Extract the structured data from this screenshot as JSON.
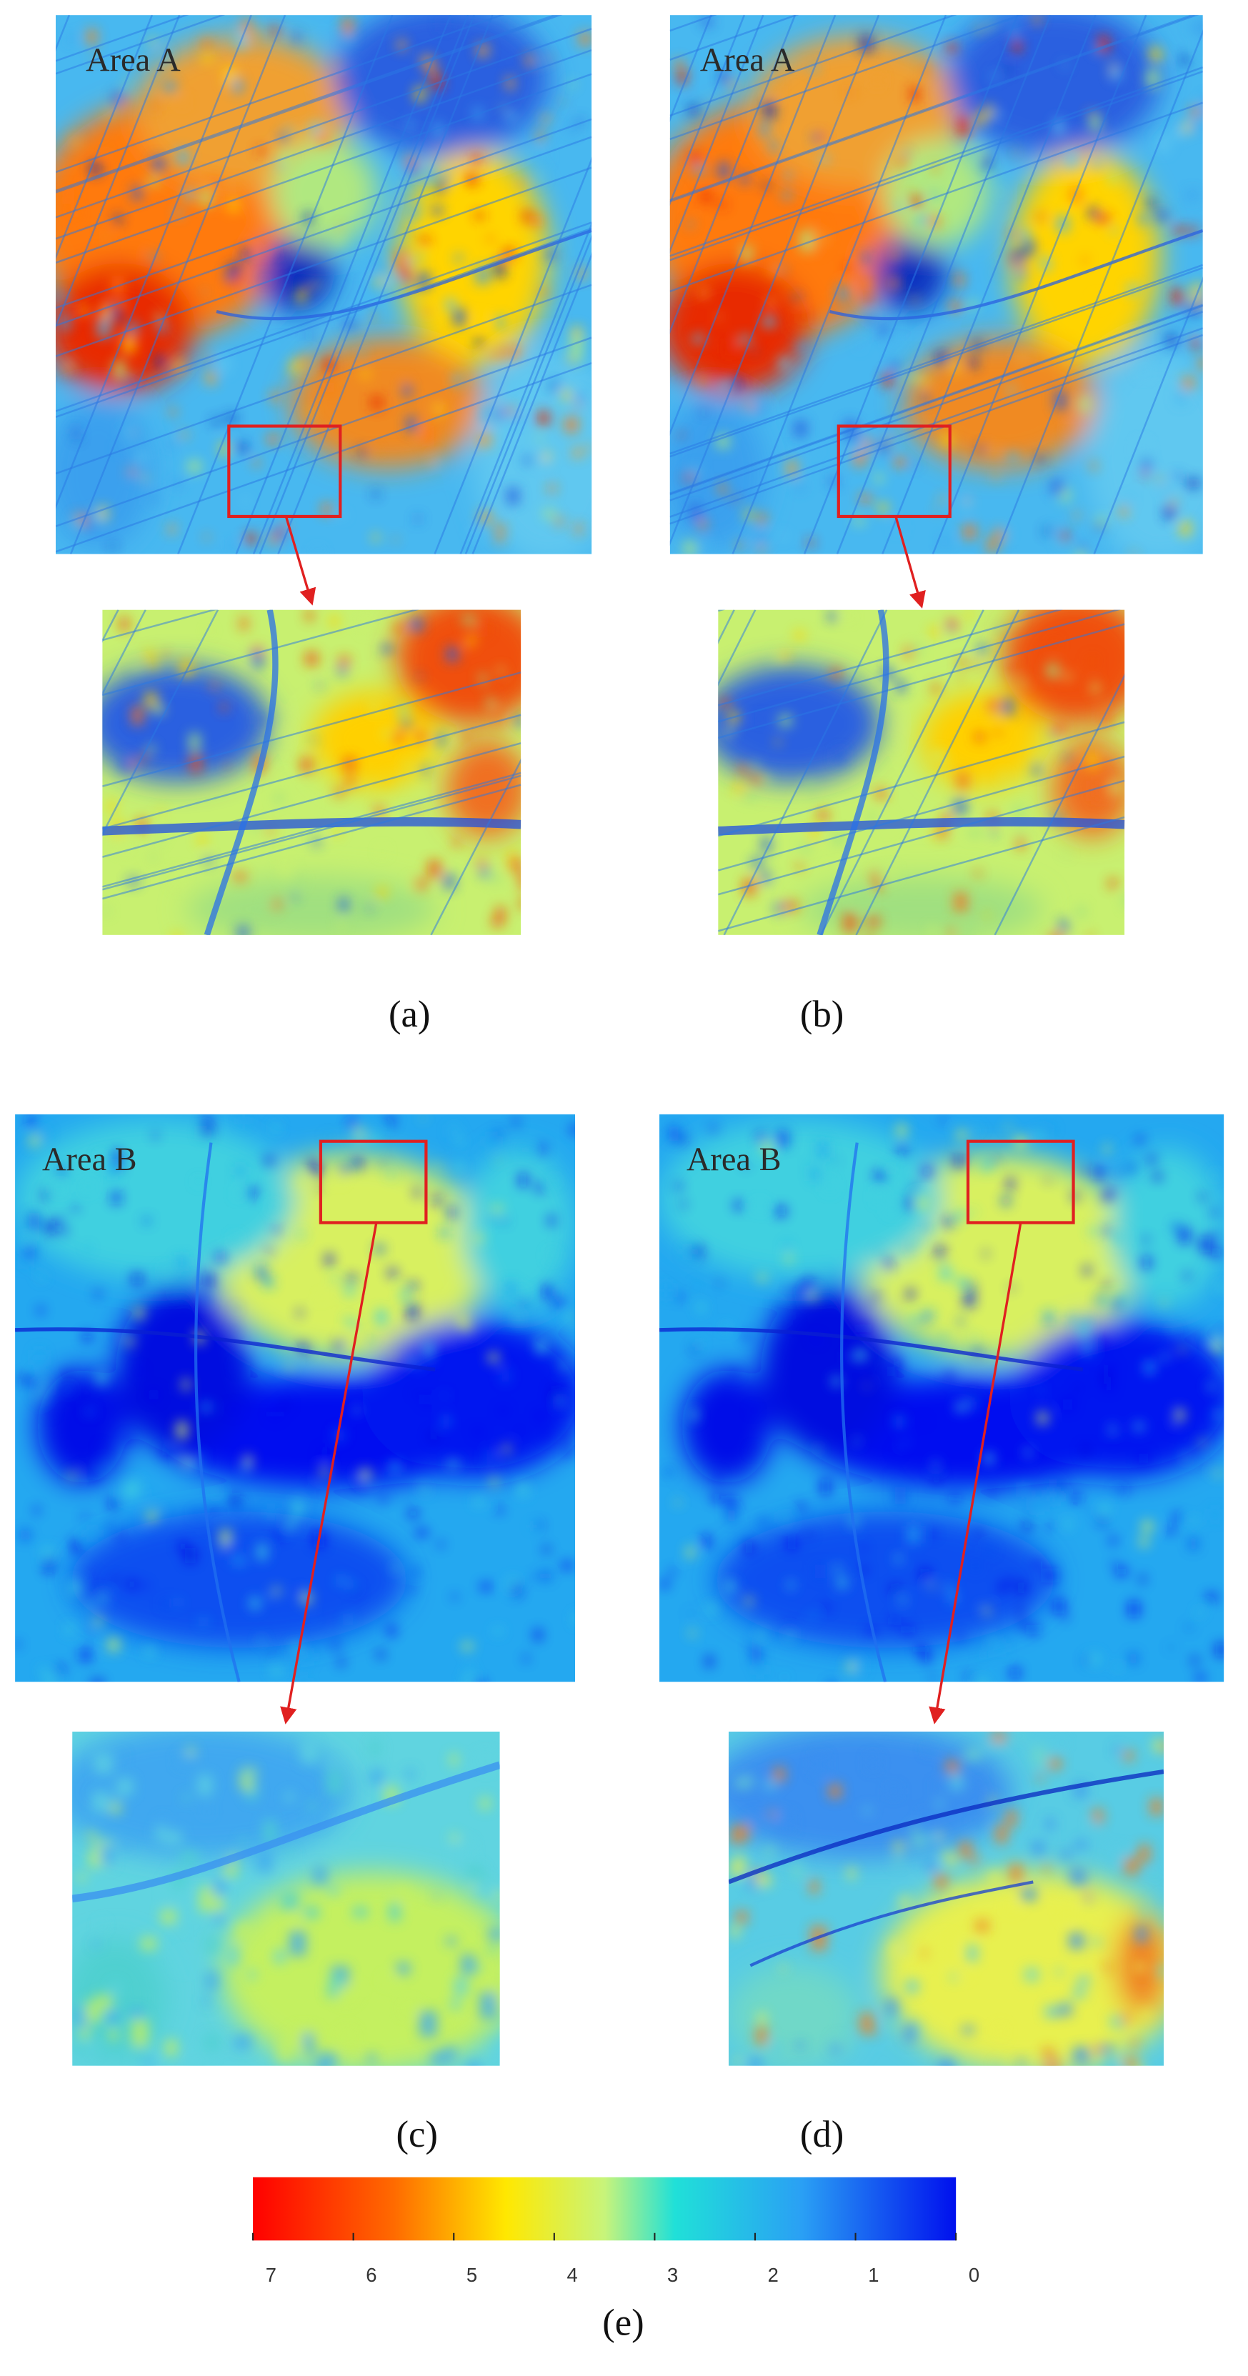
{
  "panels": [
    {
      "area_label": "Area A",
      "caption": "(a)"
    },
    {
      "area_label": "Area A",
      "caption": "(b)"
    },
    {
      "area_label": "Area B",
      "caption": "(c)"
    },
    {
      "area_label": "Area B",
      "caption": "(d)"
    }
  ],
  "colorbar": {
    "ticks": [
      7,
      6,
      5,
      4,
      3,
      2,
      1,
      0
    ],
    "range": [
      7,
      0
    ],
    "caption": "(e)"
  }
}
